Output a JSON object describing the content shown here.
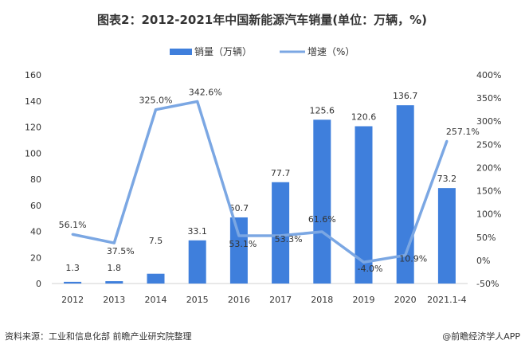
{
  "chart_data": {
    "type": "bar+line",
    "title": "图表2：2012-2021年中国新能源汽车销量(单位：万辆，%)",
    "categories": [
      "2012",
      "2013",
      "2014",
      "2015",
      "2016",
      "2017",
      "2018",
      "2019",
      "2020",
      "2021.1-4"
    ],
    "series": [
      {
        "name": "销量（万辆）",
        "type": "bar",
        "axis": "left",
        "color": "#3f7fdc",
        "values": [
          1.3,
          1.8,
          7.5,
          33.1,
          50.7,
          77.7,
          125.6,
          120.6,
          136.7,
          73.2
        ],
        "labels": [
          "1.3",
          "1.8",
          "7.5",
          "33.1",
          "50.7",
          "77.7",
          "125.6",
          "120.6",
          "136.7",
          "73.2"
        ]
      },
      {
        "name": "增速（%）",
        "type": "line",
        "axis": "right",
        "color": "#7ba7e3",
        "values": [
          56.1,
          37.5,
          325.0,
          342.6,
          53.1,
          53.3,
          61.6,
          -4.0,
          10.9,
          257.1
        ],
        "labels": [
          "56.1%",
          "37.5%",
          "325.0%",
          "342.6%",
          "53.1%",
          "53.3%",
          "61.6%",
          "-4.0%",
          "10.9%",
          "257.1%"
        ]
      }
    ],
    "left_axis": {
      "ylim": [
        0,
        160
      ],
      "ticks": [
        "0",
        "20",
        "40",
        "60",
        "80",
        "100",
        "120",
        "140",
        "160"
      ]
    },
    "right_axis": {
      "ylim": [
        -50,
        400
      ],
      "ticks": [
        "-50%",
        "0%",
        "50%",
        "100%",
        "150%",
        "200%",
        "250%",
        "300%",
        "350%",
        "400%"
      ]
    },
    "grid": false,
    "legend": "top-center"
  },
  "footer": {
    "source": "资料来源：工业和信息化部 前瞻产业研究院整理",
    "brand": "@前瞻经济学人APP"
  }
}
